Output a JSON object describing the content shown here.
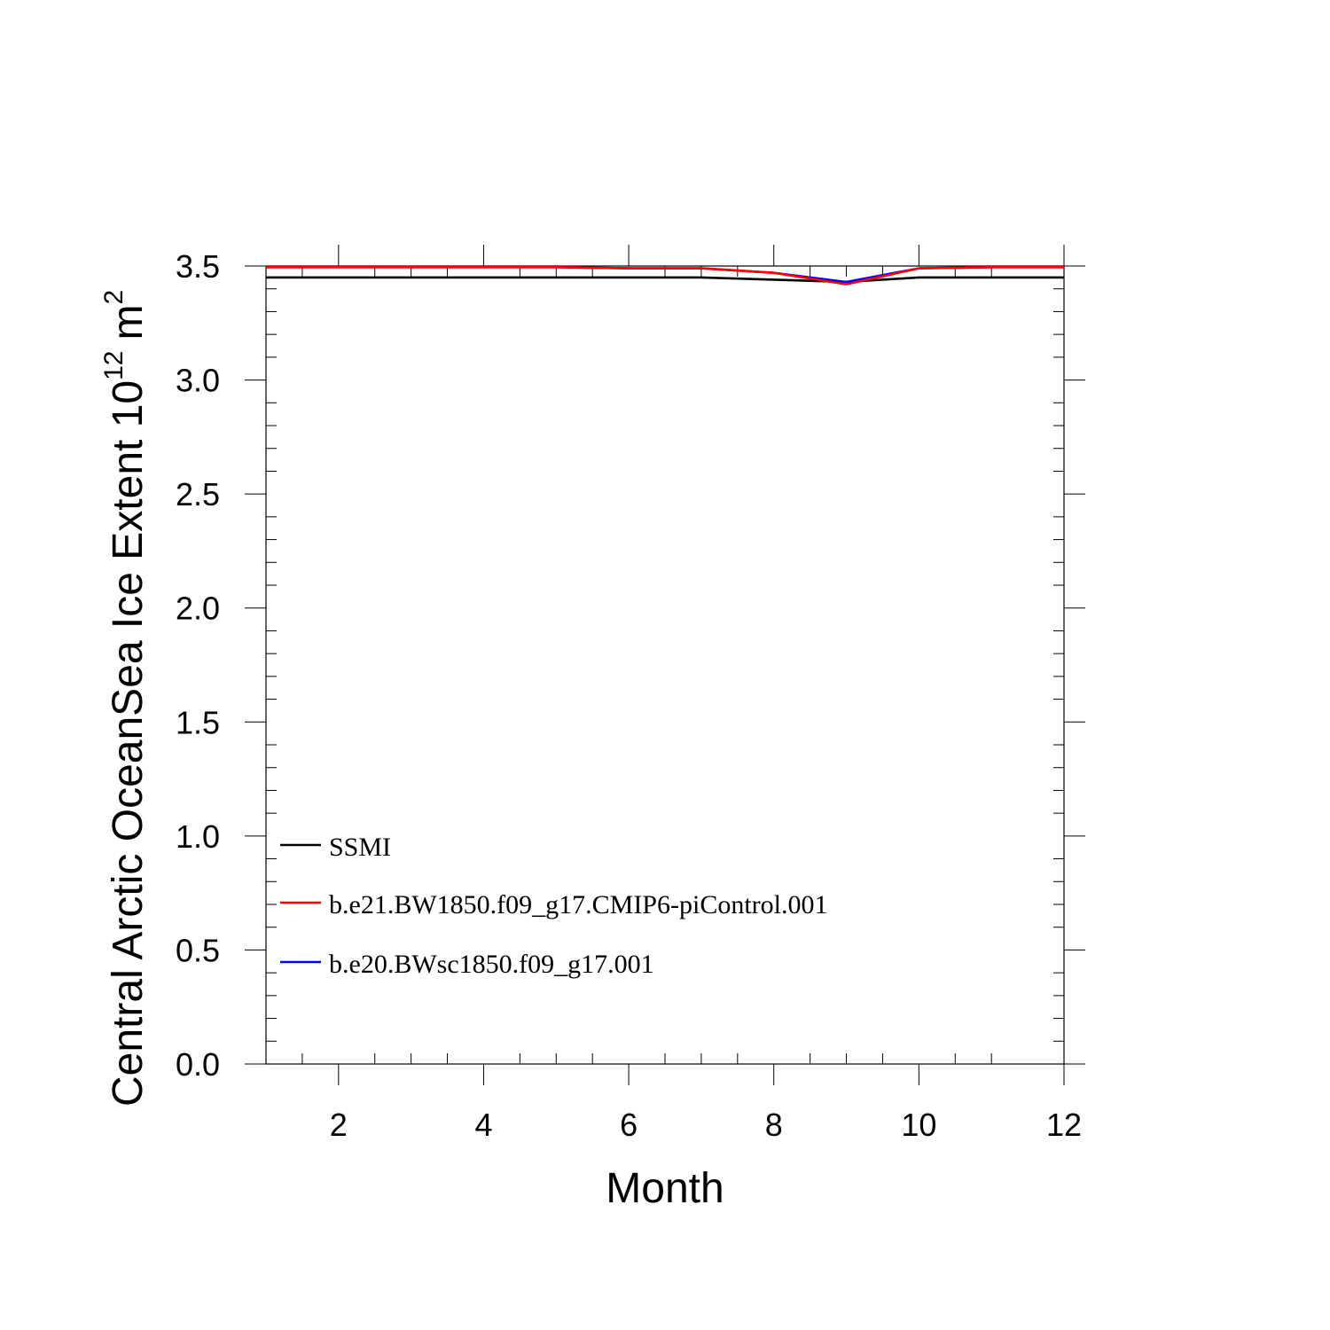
{
  "chart_data": {
    "type": "line",
    "xlabel": "Month",
    "ylabel": {
      "main": "Central Arctic OceanSea Ice Extent 10",
      "exponent": "12",
      "unit": "m",
      "unit_exponent": "2"
    },
    "xlim": [
      1,
      12
    ],
    "ylim": [
      0,
      3.5
    ],
    "x_ticks": [
      2,
      4,
      6,
      8,
      10,
      12
    ],
    "y_ticks": [
      0.0,
      0.5,
      1.0,
      1.5,
      2.0,
      2.5,
      3.0,
      3.5
    ],
    "y_tick_labels": [
      "0.0",
      "0.5",
      "1.0",
      "1.5",
      "2.0",
      "2.5",
      "3.0",
      "3.5"
    ],
    "x": [
      1,
      2,
      3,
      4,
      5,
      6,
      7,
      8,
      9,
      10,
      11,
      12
    ],
    "legend_position": "lower-left",
    "series": [
      {
        "name": "SSMI",
        "color": "#000000",
        "values": [
          3.45,
          3.45,
          3.45,
          3.45,
          3.45,
          3.45,
          3.45,
          3.44,
          3.43,
          3.45,
          3.45,
          3.45
        ]
      },
      {
        "name": "b.e21.BW1850.f09_g17.CMIP6-piControl.001",
        "color": "#ff0000",
        "values": [
          3.495,
          3.495,
          3.495,
          3.495,
          3.495,
          3.49,
          3.49,
          3.47,
          3.42,
          3.49,
          3.495,
          3.495
        ]
      },
      {
        "name": "b.e20.BWsc1850.f09_g17.001",
        "color": "#0000ff",
        "values": [
          3.495,
          3.495,
          3.495,
          3.495,
          3.495,
          3.49,
          3.49,
          3.47,
          3.43,
          3.49,
          3.495,
          3.495
        ]
      }
    ]
  }
}
